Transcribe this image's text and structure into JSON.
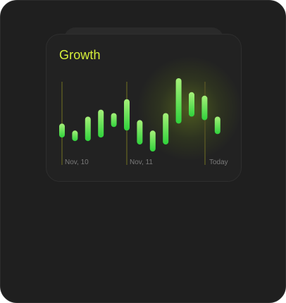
{
  "widget": {
    "title": "Growth"
  },
  "chart_data": {
    "type": "bar",
    "title": "Growth",
    "x_tick_labels": [
      "Nov, 10",
      "Nov, 11",
      "Today"
    ],
    "series": [
      {
        "bars": [
          {
            "low": 3,
            "high": 7
          },
          {
            "low": 2,
            "high": 5
          },
          {
            "low": 2,
            "high": 9
          },
          {
            "low": 3,
            "high": 11
          },
          {
            "low": 6,
            "high": 10
          },
          {
            "low": 5,
            "high": 14
          },
          {
            "low": 1,
            "high": 8
          },
          {
            "low": -1,
            "high": 5
          },
          {
            "low": 1,
            "high": 10
          },
          {
            "low": 7,
            "high": 20
          },
          {
            "low": 9,
            "high": 16
          },
          {
            "low": 8,
            "high": 15
          },
          {
            "low": 4,
            "high": 9
          }
        ]
      }
    ],
    "ylim": [
      -1,
      20
    ],
    "colors": {
      "bar_light": "#a6f07a",
      "bar_dark": "#2fd23b",
      "gridline": "#4a4a22",
      "title": "#d6f03a"
    }
  }
}
